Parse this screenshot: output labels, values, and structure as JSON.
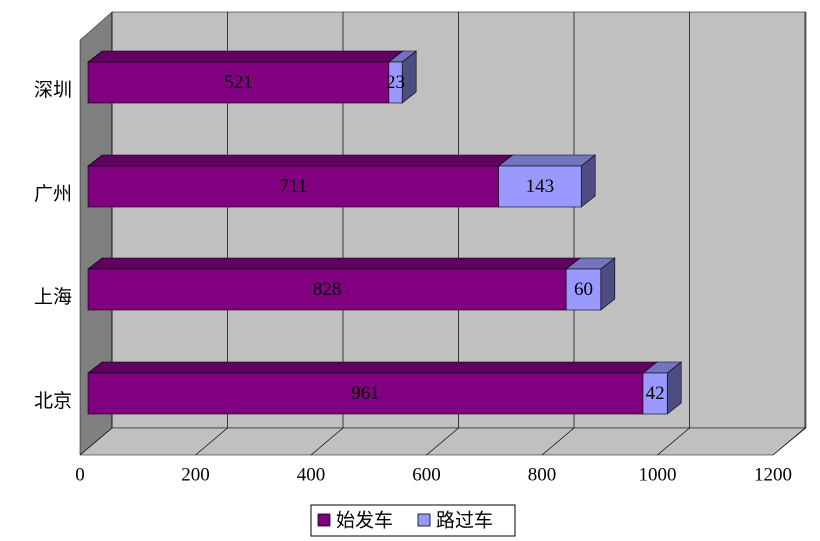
{
  "chart_data": {
    "type": "bar3d_stacked_horizontal",
    "categories": [
      "深圳",
      "广州",
      "上海",
      "北京"
    ],
    "series": [
      {
        "name": "始发车",
        "color": "#800080",
        "values": [
          521,
          711,
          828,
          961
        ]
      },
      {
        "name": "路过车",
        "color": "#9999ff",
        "values": [
          23,
          143,
          60,
          42
        ]
      }
    ],
    "xlim": [
      0,
      1200
    ],
    "xticks": [
      0,
      200,
      400,
      600,
      800,
      1000,
      1200
    ],
    "grid": true,
    "legend": "bottom"
  }
}
